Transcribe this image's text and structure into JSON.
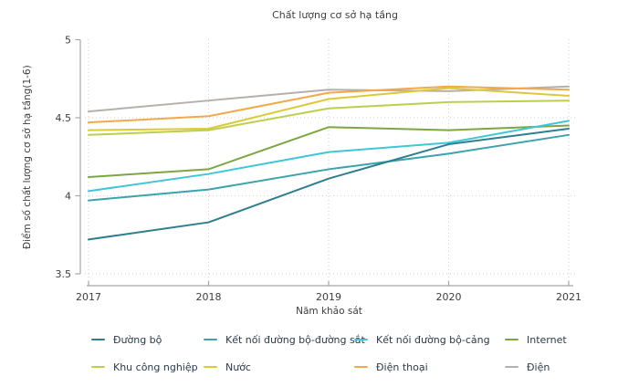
{
  "chart_data": {
    "type": "line",
    "title": "Chất lượng cơ sở hạ tầng",
    "xlabel": "Năm khảo sát",
    "ylabel": "Điểm số chất lượng cơ sở hạ tầng(1-6)",
    "x": [
      2017,
      2018,
      2019,
      2020,
      2021
    ],
    "ylim": [
      3.5,
      5
    ],
    "y_ticks": [
      5,
      4.5,
      4,
      3.5
    ],
    "grid": "dotted",
    "legend_position": "bottom",
    "series": [
      {
        "name": "Đường bộ",
        "color": "#2e7e8f",
        "values": [
          3.72,
          3.83,
          4.11,
          4.33,
          4.43
        ]
      },
      {
        "name": "Kết nối đường bộ-đường sắt",
        "color": "#3aa3ad",
        "values": [
          3.97,
          4.04,
          4.17,
          4.27,
          4.39
        ]
      },
      {
        "name": "Kết nối đường bộ-cảng",
        "color": "#3ec6d9",
        "values": [
          4.03,
          4.14,
          4.28,
          4.34,
          4.48
        ]
      },
      {
        "name": "Internet",
        "color": "#7ca63f",
        "values": [
          4.12,
          4.17,
          4.44,
          4.42,
          4.45
        ]
      },
      {
        "name": "Khu công nghiệp",
        "color": "#bccf4d",
        "values": [
          4.39,
          4.42,
          4.56,
          4.6,
          4.61
        ]
      },
      {
        "name": "Nước",
        "color": "#dcc937",
        "values": [
          4.42,
          4.43,
          4.62,
          4.69,
          4.64
        ]
      },
      {
        "name": "Điện thoại",
        "color": "#f2a94a",
        "values": [
          4.47,
          4.51,
          4.66,
          4.7,
          4.68
        ]
      },
      {
        "name": "Điện",
        "color": "#b5b0ab",
        "values": [
          4.54,
          4.61,
          4.68,
          4.67,
          4.7
        ]
      }
    ],
    "legend_rows": [
      [
        0,
        1,
        2,
        3
      ],
      [
        4,
        5,
        6,
        7
      ]
    ],
    "colors": {
      "text": "#3d3d3d",
      "legend_text": "#2b3a4a",
      "axis": "#a6a6a6",
      "grid": "#d2d2d2"
    }
  }
}
